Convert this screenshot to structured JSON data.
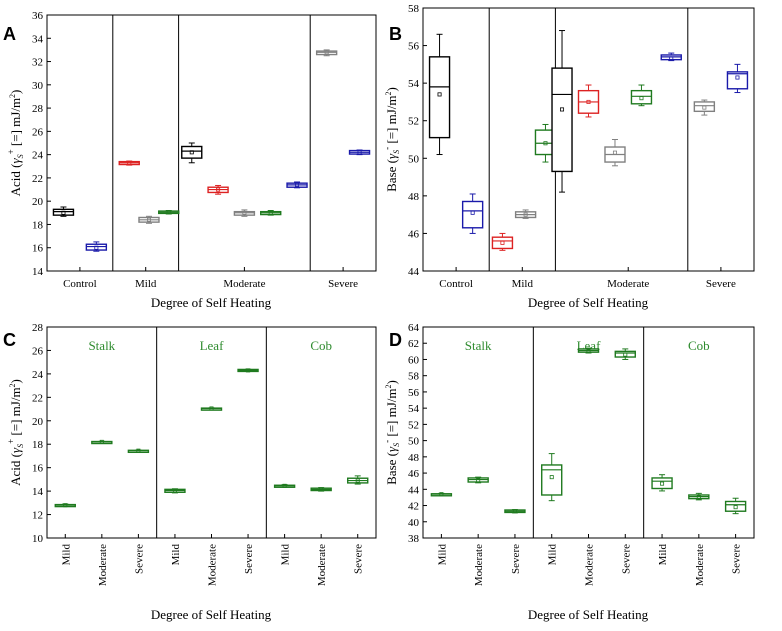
{
  "figure": {
    "xlabel": "Degree of Self Heating"
  },
  "chart_data": [
    {
      "panel": "A",
      "type": "box",
      "ylabel": "Acid (γS+ [=] mJ/m2)",
      "ylim": [
        14,
        36
      ],
      "yticks": [
        14,
        16,
        18,
        20,
        22,
        24,
        26,
        28,
        30,
        32,
        34,
        36
      ],
      "sections": [
        {
          "label": "Control",
          "from": 0,
          "to": 2
        },
        {
          "label": "Mild",
          "from": 2,
          "to": 4
        },
        {
          "label": "Moderate",
          "from": 4,
          "to": 8
        },
        {
          "label": "Severe",
          "from": 8,
          "to": 10
        }
      ],
      "boxes": [
        {
          "x": 0.5,
          "color": "#000000",
          "min": 18.7,
          "q1": 18.8,
          "median": 19.1,
          "q3": 19.3,
          "max": 19.5,
          "mean": 19.0
        },
        {
          "x": 1.5,
          "color": "#1a1aaa",
          "min": 15.7,
          "q1": 15.8,
          "median": 16.1,
          "q3": 16.3,
          "max": 16.5,
          "mean": 16.0
        },
        {
          "x": 2.5,
          "color": "#dd2222",
          "min": 23.1,
          "q1": 23.15,
          "median": 23.3,
          "q3": 23.4,
          "max": 23.45,
          "mean": 23.3
        },
        {
          "x": 3.1,
          "color": "#808080",
          "min": 18.1,
          "q1": 18.2,
          "median": 18.4,
          "q3": 18.6,
          "max": 18.7,
          "mean": 18.4
        },
        {
          "x": 3.7,
          "color": "#1f7a1f",
          "min": 18.9,
          "q1": 18.95,
          "median": 19.05,
          "q3": 19.15,
          "max": 19.2,
          "mean": 19.05
        },
        {
          "x": 4.4,
          "color": "#000000",
          "min": 23.3,
          "q1": 23.7,
          "median": 24.3,
          "q3": 24.7,
          "max": 25.0,
          "mean": 24.2
        },
        {
          "x": 5.2,
          "color": "#dd2222",
          "min": 20.6,
          "q1": 20.75,
          "median": 21.0,
          "q3": 21.2,
          "max": 21.35,
          "mean": 21.0
        },
        {
          "x": 6.0,
          "color": "#808080",
          "min": 18.7,
          "q1": 18.8,
          "median": 19.0,
          "q3": 19.1,
          "max": 19.25,
          "mean": 19.0
        },
        {
          "x": 6.8,
          "color": "#1f7a1f",
          "min": 18.8,
          "q1": 18.85,
          "median": 19.0,
          "q3": 19.1,
          "max": 19.2,
          "mean": 19.0
        },
        {
          "x": 7.6,
          "color": "#1a1aaa",
          "min": 21.15,
          "q1": 21.2,
          "median": 21.4,
          "q3": 21.55,
          "max": 21.65,
          "mean": 21.4
        },
        {
          "x": 8.5,
          "color": "#808080",
          "min": 32.5,
          "q1": 32.6,
          "median": 32.8,
          "q3": 32.9,
          "max": 33.0,
          "mean": 32.8
        },
        {
          "x": 9.5,
          "color": "#1a1aaa",
          "min": 24.0,
          "q1": 24.05,
          "median": 24.2,
          "q3": 24.35,
          "max": 24.4,
          "mean": 24.2
        }
      ]
    },
    {
      "panel": "B",
      "type": "box",
      "ylabel": "Base (γS- [=] mJ/m2)",
      "ylim": [
        44,
        58
      ],
      "yticks": [
        44,
        46,
        48,
        50,
        52,
        54,
        56,
        58
      ],
      "sections": [
        {
          "label": "Control",
          "from": 0,
          "to": 2
        },
        {
          "label": "Mild",
          "from": 2,
          "to": 4
        },
        {
          "label": "Moderate",
          "from": 4,
          "to": 8
        },
        {
          "label": "Severe",
          "from": 8,
          "to": 10
        }
      ],
      "boxes": [
        {
          "x": 0.5,
          "color": "#000000",
          "min": 50.2,
          "q1": 51.1,
          "median": 53.8,
          "q3": 55.4,
          "max": 56.6,
          "mean": 53.4
        },
        {
          "x": 1.5,
          "color": "#1a1aaa",
          "min": 46.0,
          "q1": 46.3,
          "median": 47.2,
          "q3": 47.7,
          "max": 48.1,
          "mean": 47.1
        },
        {
          "x": 2.4,
          "color": "#dd2222",
          "min": 45.1,
          "q1": 45.2,
          "median": 45.6,
          "q3": 45.8,
          "max": 46.0,
          "mean": 45.5
        },
        {
          "x": 3.1,
          "color": "#808080",
          "min": 46.8,
          "q1": 46.85,
          "median": 47.0,
          "q3": 47.15,
          "max": 47.25,
          "mean": 47.0
        },
        {
          "x": 3.7,
          "color": "#1f7a1f",
          "min": 49.8,
          "q1": 50.2,
          "median": 50.8,
          "q3": 51.5,
          "max": 51.8,
          "mean": 50.8
        },
        {
          "x": 4.2,
          "color": "#000000",
          "min": 48.2,
          "q1": 49.3,
          "median": 53.4,
          "q3": 54.8,
          "max": 56.8,
          "mean": 52.6
        },
        {
          "x": 5.0,
          "color": "#dd2222",
          "min": 52.2,
          "q1": 52.4,
          "median": 53.0,
          "q3": 53.6,
          "max": 53.9,
          "mean": 53.0
        },
        {
          "x": 5.8,
          "color": "#808080",
          "min": 49.6,
          "q1": 49.8,
          "median": 50.2,
          "q3": 50.6,
          "max": 51.0,
          "mean": 50.3
        },
        {
          "x": 6.6,
          "color": "#1f7a1f",
          "min": 52.8,
          "q1": 52.9,
          "median": 53.3,
          "q3": 53.6,
          "max": 53.9,
          "mean": 53.2
        },
        {
          "x": 7.5,
          "color": "#1a1aaa",
          "min": 55.2,
          "q1": 55.25,
          "median": 55.4,
          "q3": 55.5,
          "max": 55.6,
          "mean": 55.3
        },
        {
          "x": 8.5,
          "color": "#808080",
          "min": 52.3,
          "q1": 52.5,
          "median": 52.8,
          "q3": 53.0,
          "max": 53.1,
          "mean": 52.7
        },
        {
          "x": 9.5,
          "color": "#1a1aaa",
          "min": 53.5,
          "q1": 53.7,
          "median": 54.5,
          "q3": 54.6,
          "max": 55.0,
          "mean": 54.3
        }
      ]
    },
    {
      "panel": "C",
      "type": "box",
      "ylabel": "Acid (γS+ [=] mJ/m2)",
      "ylim": [
        10,
        28
      ],
      "yticks": [
        10,
        12,
        14,
        16,
        18,
        20,
        22,
        24,
        26,
        28
      ],
      "groups": [
        "Stalk",
        "Leaf",
        "Cob"
      ],
      "categories": [
        "Mild",
        "Moderate",
        "Severe",
        "Mild",
        "Moderate",
        "Severe",
        "Mild",
        "Moderate",
        "Severe"
      ],
      "boxes": [
        {
          "color": "#1f7a1f",
          "min": 12.7,
          "q1": 12.72,
          "median": 12.8,
          "q3": 12.85,
          "max": 12.9,
          "mean": 12.8
        },
        {
          "color": "#1f7a1f",
          "min": 18.15,
          "q1": 18.17,
          "median": 18.2,
          "q3": 18.23,
          "max": 18.25,
          "mean": 18.2
        },
        {
          "color": "#1f7a1f",
          "min": 17.4,
          "q1": 17.42,
          "median": 17.45,
          "q3": 17.48,
          "max": 17.5,
          "mean": 17.45
        },
        {
          "color": "#1f7a1f",
          "min": 13.85,
          "q1": 13.9,
          "median": 14.05,
          "q3": 14.15,
          "max": 14.2,
          "mean": 14.05
        },
        {
          "color": "#1f7a1f",
          "min": 21.0,
          "q1": 21.02,
          "median": 21.05,
          "q3": 21.08,
          "max": 21.1,
          "mean": 21.05
        },
        {
          "color": "#1f7a1f",
          "min": 24.2,
          "q1": 24.22,
          "median": 24.3,
          "q3": 24.38,
          "max": 24.4,
          "mean": 24.3
        },
        {
          "color": "#1f7a1f",
          "min": 14.35,
          "q1": 14.38,
          "median": 14.45,
          "q3": 14.5,
          "max": 14.55,
          "mean": 14.45
        },
        {
          "color": "#1f7a1f",
          "min": 14.0,
          "q1": 14.05,
          "median": 14.15,
          "q3": 14.25,
          "max": 14.3,
          "mean": 14.15
        },
        {
          "color": "#1f7a1f",
          "min": 14.6,
          "q1": 14.7,
          "median": 14.9,
          "q3": 15.1,
          "max": 15.3,
          "mean": 14.9
        }
      ]
    },
    {
      "panel": "D",
      "type": "box",
      "ylabel": "Base (γS- [=] mJ/m2)",
      "ylim": [
        38,
        64
      ],
      "yticks": [
        38,
        40,
        42,
        44,
        46,
        48,
        50,
        52,
        54,
        56,
        58,
        60,
        62,
        64
      ],
      "groups": [
        "Stalk",
        "Leaf",
        "Cob"
      ],
      "categories": [
        "Mild",
        "Moderate",
        "Severe",
        "Mild",
        "Moderate",
        "Severe",
        "Mild",
        "Moderate",
        "Severe"
      ],
      "boxes": [
        {
          "color": "#1f7a1f",
          "min": 43.3,
          "q1": 43.35,
          "median": 43.4,
          "q3": 43.45,
          "max": 43.5,
          "mean": 43.4
        },
        {
          "color": "#1f7a1f",
          "min": 44.8,
          "q1": 44.9,
          "median": 45.2,
          "q3": 45.4,
          "max": 45.5,
          "mean": 45.1
        },
        {
          "color": "#1f7a1f",
          "min": 41.1,
          "q1": 41.15,
          "median": 41.3,
          "q3": 41.45,
          "max": 41.5,
          "mean": 41.3
        },
        {
          "color": "#1f7a1f",
          "min": 42.6,
          "q1": 43.3,
          "median": 46.4,
          "q3": 47.0,
          "max": 48.4,
          "mean": 45.5
        },
        {
          "color": "#1f7a1f",
          "min": 60.8,
          "q1": 60.9,
          "median": 61.1,
          "q3": 61.3,
          "max": 61.4,
          "mean": 61.0
        },
        {
          "color": "#1f7a1f",
          "min": 60.0,
          "q1": 60.3,
          "median": 60.8,
          "q3": 61.0,
          "max": 61.3,
          "mean": 60.6
        },
        {
          "color": "#1f7a1f",
          "min": 43.8,
          "q1": 44.1,
          "median": 45.0,
          "q3": 45.4,
          "max": 45.8,
          "mean": 44.7
        },
        {
          "color": "#1f7a1f",
          "min": 42.7,
          "q1": 42.85,
          "median": 43.1,
          "q3": 43.3,
          "max": 43.5,
          "mean": 43.0
        },
        {
          "color": "#1f7a1f",
          "min": 41.0,
          "q1": 41.3,
          "median": 42.1,
          "q3": 42.5,
          "max": 42.9,
          "mean": 41.8
        }
      ]
    }
  ]
}
